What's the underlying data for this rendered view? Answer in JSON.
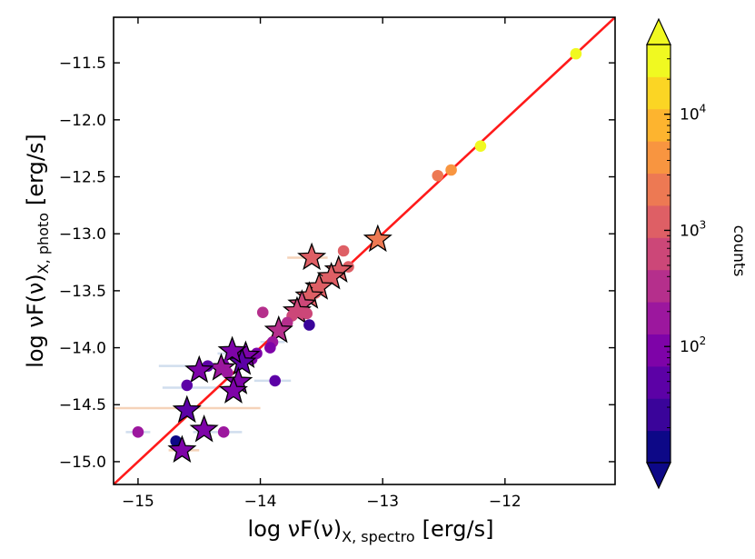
{
  "chart_data": {
    "type": "scatter",
    "xlabel_main": "log νF(ν)",
    "xlabel_sub": "X, spectro",
    "xlabel_unit": "[erg/s]",
    "ylabel_main": "log νF(ν)",
    "ylabel_sub": "X, photo",
    "ylabel_unit": "[erg/s]",
    "xlim": [
      -15.2,
      -11.1
    ],
    "ylim": [
      -15.2,
      -11.1
    ],
    "x_ticks": [
      -15,
      -14,
      -13,
      -12
    ],
    "x_tick_labels": [
      "−15",
      "−14",
      "−13",
      "−12"
    ],
    "y_ticks": [
      -15.0,
      -14.5,
      -14.0,
      -13.5,
      -13.0,
      -12.5,
      -12.0,
      -11.5
    ],
    "y_tick_labels": [
      "−15.0",
      "−14.5",
      "−14.0",
      "−13.5",
      "−13.0",
      "−12.5",
      "−12.0",
      "−11.5"
    ],
    "line": {
      "name": "1:1 line",
      "color": "#ff1a1a",
      "x": [
        -15.2,
        -11.1
      ],
      "y": [
        -15.2,
        -11.1
      ]
    },
    "colorbar": {
      "label": "counts",
      "scale": "log",
      "range": [
        1.0,
        4.6
      ],
      "tick_values": [
        2,
        3,
        4
      ],
      "tick_labels_base": [
        "10",
        "10",
        "10"
      ],
      "tick_labels_exp": [
        "2",
        "3",
        "4"
      ],
      "colors": [
        "#0d0887",
        "#3a049a",
        "#5c01a6",
        "#7e03a8",
        "#9c179e",
        "#b52f8c",
        "#cc4778",
        "#de5f65",
        "#ed7953",
        "#f89540",
        "#fdb42f",
        "#fbd524",
        "#f0f921"
      ]
    },
    "points": [
      {
        "x": -11.42,
        "y": -11.42,
        "lc": 4.45,
        "marker": "circle"
      },
      {
        "x": -12.2,
        "y": -12.23,
        "lc": 4.35,
        "marker": "circle"
      },
      {
        "x": -12.44,
        "y": -12.44,
        "lc": 3.55,
        "marker": "circle"
      },
      {
        "x": -12.55,
        "y": -12.49,
        "lc": 3.45,
        "marker": "circle"
      },
      {
        "x": -13.04,
        "y": -13.05,
        "lc": 3.45,
        "marker": "star"
      },
      {
        "x": -13.32,
        "y": -13.15,
        "lc": 2.95,
        "marker": "circle"
      },
      {
        "x": -13.28,
        "y": -13.29,
        "lc": 3.0,
        "marker": "circle"
      },
      {
        "x": -13.58,
        "y": -13.21,
        "lc": 3.2,
        "marker": "star"
      },
      {
        "x": -13.36,
        "y": -13.32,
        "lc": 3.2,
        "marker": "star"
      },
      {
        "x": -13.42,
        "y": -13.38,
        "lc": 3.15,
        "marker": "star"
      },
      {
        "x": -13.48,
        "y": -13.42,
        "lc": 3.2,
        "marker": "circle"
      },
      {
        "x": -13.52,
        "y": -13.47,
        "lc": 3.15,
        "marker": "star"
      },
      {
        "x": -13.55,
        "y": -13.52,
        "lc": 3.1,
        "marker": "circle"
      },
      {
        "x": -13.6,
        "y": -13.55,
        "lc": 3.0,
        "marker": "star"
      },
      {
        "x": -13.66,
        "y": -13.62,
        "lc": 2.9,
        "marker": "star"
      },
      {
        "x": -13.7,
        "y": -13.68,
        "lc": 2.85,
        "marker": "star"
      },
      {
        "x": -13.74,
        "y": -13.72,
        "lc": 2.8,
        "marker": "circle"
      },
      {
        "x": -13.62,
        "y": -13.7,
        "lc": 2.75,
        "marker": "circle"
      },
      {
        "x": -13.6,
        "y": -13.8,
        "lc": 1.35,
        "marker": "circle"
      },
      {
        "x": -13.78,
        "y": -13.78,
        "lc": 2.6,
        "marker": "circle"
      },
      {
        "x": -13.85,
        "y": -13.85,
        "lc": 2.5,
        "marker": "star"
      },
      {
        "x": -13.98,
        "y": -13.69,
        "lc": 2.4,
        "marker": "circle"
      },
      {
        "x": -13.9,
        "y": -13.95,
        "lc": 2.2,
        "marker": "circle"
      },
      {
        "x": -13.92,
        "y": -14.0,
        "lc": 2.0,
        "marker": "circle"
      },
      {
        "x": -14.03,
        "y": -14.05,
        "lc": 2.0,
        "marker": "circle"
      },
      {
        "x": -14.07,
        "y": -14.1,
        "lc": 1.9,
        "marker": "circle"
      },
      {
        "x": -14.12,
        "y": -14.07,
        "lc": 2.1,
        "marker": "star"
      },
      {
        "x": -14.15,
        "y": -14.13,
        "lc": 1.8,
        "marker": "star"
      },
      {
        "x": -14.23,
        "y": -14.03,
        "lc": 2.0,
        "marker": "star"
      },
      {
        "x": -13.88,
        "y": -14.29,
        "lc": 1.7,
        "marker": "circle"
      },
      {
        "x": -14.3,
        "y": -14.15,
        "lc": 2.1,
        "marker": "circle"
      },
      {
        "x": -14.32,
        "y": -14.18,
        "lc": 2.2,
        "marker": "star"
      },
      {
        "x": -14.27,
        "y": -14.22,
        "lc": 2.3,
        "marker": "circle"
      },
      {
        "x": -14.18,
        "y": -14.3,
        "lc": 2.0,
        "marker": "star"
      },
      {
        "x": -14.22,
        "y": -14.38,
        "lc": 1.9,
        "marker": "star"
      },
      {
        "x": -14.43,
        "y": -14.16,
        "lc": 1.8,
        "marker": "circle"
      },
      {
        "x": -14.5,
        "y": -14.2,
        "lc": 2.0,
        "marker": "star"
      },
      {
        "x": -14.6,
        "y": -14.33,
        "lc": 1.7,
        "marker": "circle"
      },
      {
        "x": -14.6,
        "y": -14.55,
        "lc": 1.8,
        "marker": "star"
      },
      {
        "x": -14.46,
        "y": -14.72,
        "lc": 2.1,
        "marker": "star"
      },
      {
        "x": -14.3,
        "y": -14.74,
        "lc": 2.2,
        "marker": "circle"
      },
      {
        "x": -15.0,
        "y": -14.74,
        "lc": 2.2,
        "marker": "circle"
      },
      {
        "x": -14.69,
        "y": -14.82,
        "lc": 1.2,
        "marker": "circle"
      },
      {
        "x": -14.64,
        "y": -14.9,
        "lc": 2.0,
        "marker": "star"
      }
    ],
    "error_bars": [
      {
        "x1": -15.2,
        "x2": -14.0,
        "y": -14.53,
        "color": "#f3c9a8"
      },
      {
        "x1": -14.83,
        "x2": -14.3,
        "y": -14.16,
        "color": "#c6d7ea"
      },
      {
        "x1": -14.8,
        "x2": -14.3,
        "y": -14.35,
        "color": "#c6d7ea"
      },
      {
        "x1": -15.1,
        "x2": -14.9,
        "y": -14.74,
        "color": "#c6d7ea"
      },
      {
        "x1": -14.55,
        "x2": -14.15,
        "y": -14.74,
        "color": "#c6d7ea"
      },
      {
        "x1": -14.75,
        "x2": -14.5,
        "y": -14.9,
        "color": "#f3c9a8"
      },
      {
        "x1": -14.05,
        "x2": -13.75,
        "y": -14.29,
        "color": "#c6d7ea"
      },
      {
        "x1": -13.78,
        "x2": -13.45,
        "y": -13.21,
        "color": "#f3c9a8"
      },
      {
        "x1": -14.35,
        "x2": -14.05,
        "y": -14.05,
        "color": "#c6d7ea"
      },
      {
        "x1": -14.0,
        "x2": -13.8,
        "y": -13.95,
        "color": "#c6d7ea"
      }
    ]
  }
}
